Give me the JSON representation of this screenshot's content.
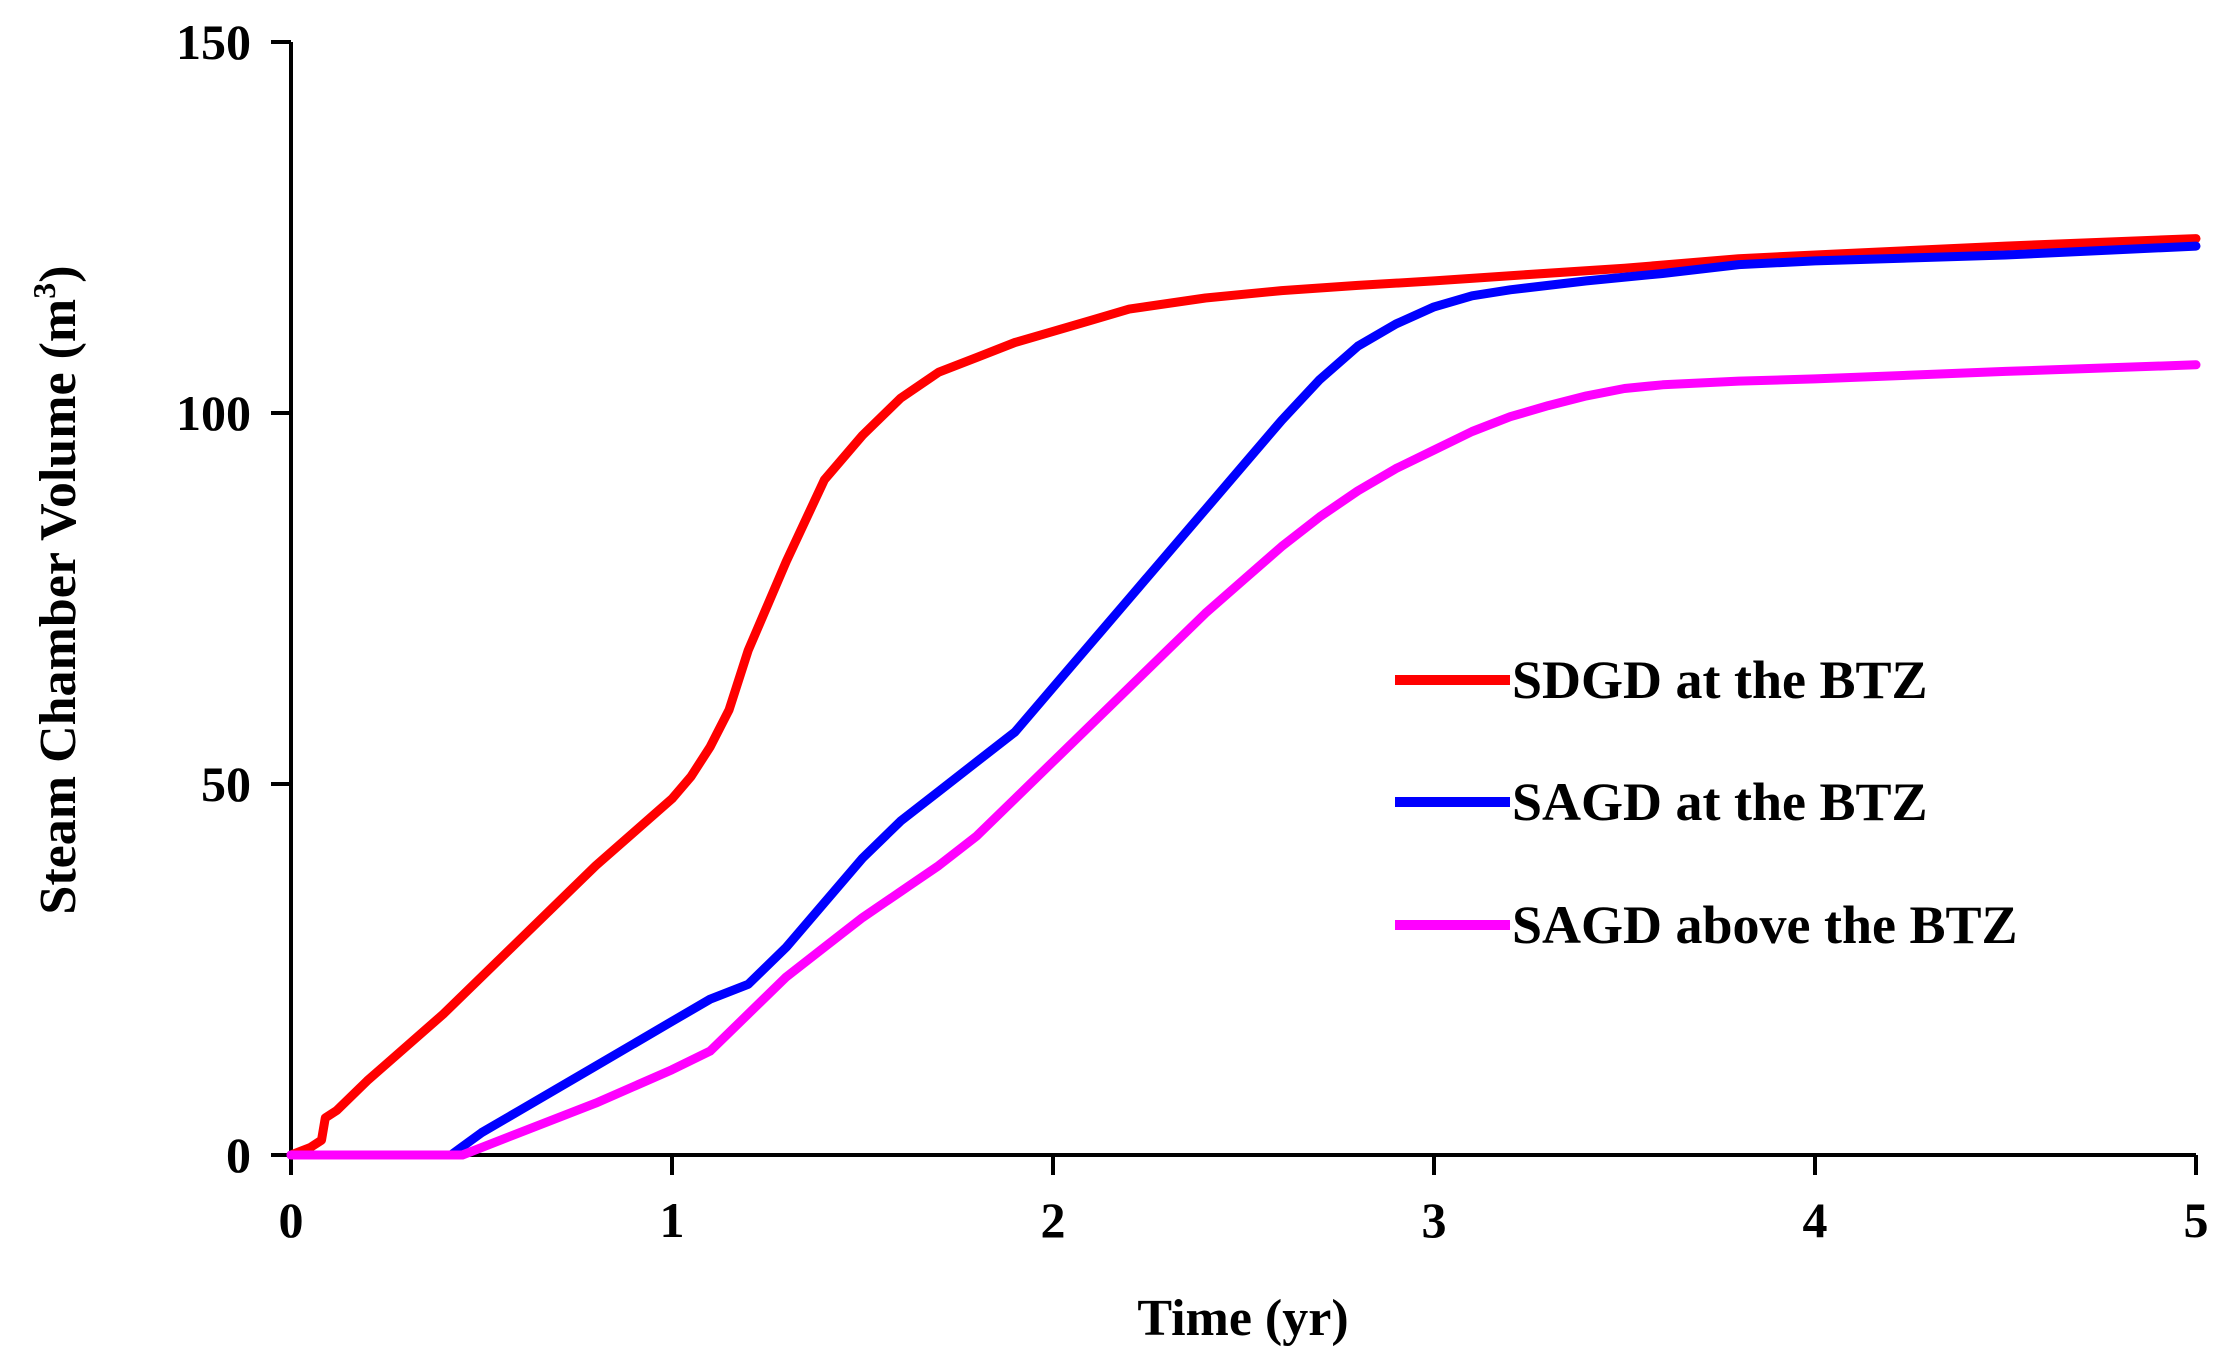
{
  "chart_data": {
    "type": "line",
    "title": "",
    "xlabel": "Time (yr)",
    "ylabel_main": "Steam Chamber Volume (m",
    "ylabel_sup": "3",
    "ylabel_close": ")",
    "xlim": [
      0,
      5
    ],
    "ylim": [
      0,
      150
    ],
    "xticks": [
      0,
      1,
      2,
      3,
      4,
      5
    ],
    "yticks": [
      0,
      50,
      100,
      150
    ],
    "grid": false,
    "legend_position": "right-middle",
    "series": [
      {
        "name": "SDGD at the BTZ",
        "color": "#ff0000",
        "points": [
          [
            0,
            0
          ],
          [
            0.05,
            1
          ],
          [
            0.08,
            2
          ],
          [
            0.09,
            5
          ],
          [
            0.12,
            6
          ],
          [
            0.2,
            10
          ],
          [
            0.4,
            19
          ],
          [
            0.6,
            29
          ],
          [
            0.8,
            39
          ],
          [
            1.0,
            48
          ],
          [
            1.05,
            51
          ],
          [
            1.1,
            55
          ],
          [
            1.15,
            60
          ],
          [
            1.2,
            68
          ],
          [
            1.3,
            80
          ],
          [
            1.4,
            91
          ],
          [
            1.5,
            97
          ],
          [
            1.6,
            102
          ],
          [
            1.7,
            105.5
          ],
          [
            1.8,
            107.5
          ],
          [
            1.9,
            109.5
          ],
          [
            2.0,
            111
          ],
          [
            2.1,
            112.5
          ],
          [
            2.2,
            114
          ],
          [
            2.4,
            115.5
          ],
          [
            2.6,
            116.5
          ],
          [
            2.8,
            117.2
          ],
          [
            3.0,
            117.8
          ],
          [
            3.2,
            118.5
          ],
          [
            3.5,
            119.5
          ],
          [
            3.8,
            120.8
          ],
          [
            4.0,
            121.3
          ],
          [
            4.5,
            122.5
          ],
          [
            5.0,
            123.5
          ]
        ]
      },
      {
        "name": "SAGD at the BTZ",
        "color": "#0000ff",
        "points": [
          [
            0,
            0
          ],
          [
            0.42,
            0
          ],
          [
            0.5,
            3
          ],
          [
            0.6,
            6
          ],
          [
            0.7,
            9
          ],
          [
            0.8,
            12
          ],
          [
            0.9,
            15
          ],
          [
            1.0,
            18
          ],
          [
            1.1,
            21
          ],
          [
            1.2,
            23
          ],
          [
            1.3,
            28
          ],
          [
            1.4,
            34
          ],
          [
            1.5,
            40
          ],
          [
            1.6,
            45
          ],
          [
            1.7,
            49
          ],
          [
            1.8,
            53
          ],
          [
            1.9,
            57
          ],
          [
            2.0,
            63
          ],
          [
            2.1,
            69
          ],
          [
            2.2,
            75
          ],
          [
            2.3,
            81
          ],
          [
            2.4,
            87
          ],
          [
            2.5,
            93
          ],
          [
            2.6,
            99
          ],
          [
            2.7,
            104.5
          ],
          [
            2.8,
            109
          ],
          [
            2.9,
            112
          ],
          [
            3.0,
            114.3
          ],
          [
            3.1,
            115.8
          ],
          [
            3.2,
            116.6
          ],
          [
            3.4,
            117.8
          ],
          [
            3.6,
            118.8
          ],
          [
            3.8,
            120
          ],
          [
            4.0,
            120.5
          ],
          [
            4.5,
            121.3
          ],
          [
            5.0,
            122.5
          ]
        ]
      },
      {
        "name": "SAGD above the BTZ",
        "color": "#ff00ff",
        "points": [
          [
            0,
            0
          ],
          [
            0.45,
            0
          ],
          [
            0.6,
            3
          ],
          [
            0.8,
            7
          ],
          [
            1.0,
            11.5
          ],
          [
            1.1,
            14
          ],
          [
            1.2,
            19
          ],
          [
            1.3,
            24
          ],
          [
            1.4,
            28
          ],
          [
            1.5,
            32
          ],
          [
            1.6,
            35.5
          ],
          [
            1.7,
            39
          ],
          [
            1.8,
            43
          ],
          [
            1.9,
            48
          ],
          [
            2.0,
            53
          ],
          [
            2.1,
            58
          ],
          [
            2.2,
            63
          ],
          [
            2.3,
            68
          ],
          [
            2.4,
            73
          ],
          [
            2.5,
            77.5
          ],
          [
            2.6,
            82
          ],
          [
            2.7,
            86
          ],
          [
            2.8,
            89.5
          ],
          [
            2.9,
            92.5
          ],
          [
            3.0,
            95
          ],
          [
            3.1,
            97.5
          ],
          [
            3.2,
            99.5
          ],
          [
            3.3,
            101
          ],
          [
            3.4,
            102.3
          ],
          [
            3.5,
            103.3
          ],
          [
            3.6,
            103.8
          ],
          [
            3.8,
            104.3
          ],
          [
            4.0,
            104.6
          ],
          [
            4.5,
            105.6
          ],
          [
            5.0,
            106.5
          ]
        ]
      }
    ]
  }
}
